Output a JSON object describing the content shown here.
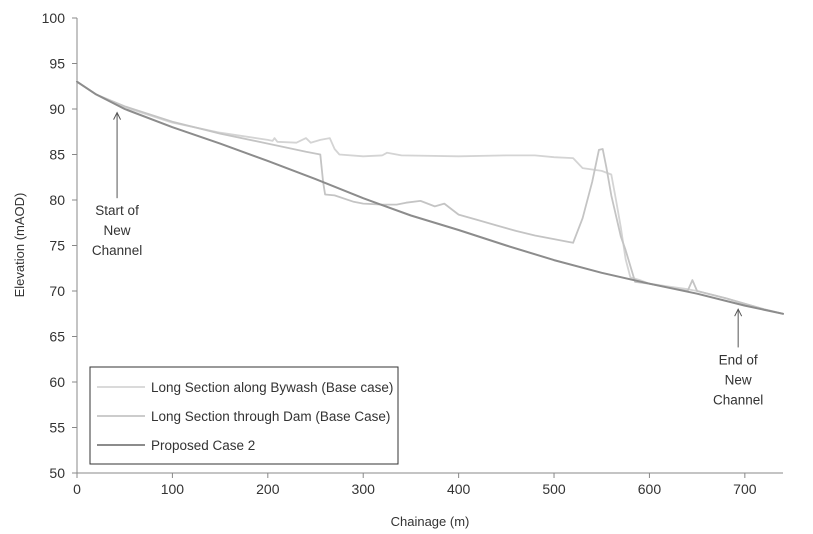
{
  "chart_data": {
    "type": "line",
    "title": "",
    "xlabel": "Chainage (m)",
    "ylabel": "Elevation (mAOD)",
    "xlim": [
      0,
      740
    ],
    "ylim": [
      50,
      100
    ],
    "xticks": [
      0,
      100,
      200,
      300,
      400,
      500,
      600,
      700
    ],
    "yticks": [
      50,
      55,
      60,
      65,
      70,
      75,
      80,
      85,
      90,
      95,
      100
    ],
    "grid": false,
    "legend_position": "bottom-left",
    "series": [
      {
        "name": "Long Section along Bywash (Base case)",
        "color": "#d4d4d4",
        "points": [
          [
            0,
            93
          ],
          [
            20,
            91.6
          ],
          [
            50,
            90.2
          ],
          [
            100,
            88.5
          ],
          [
            150,
            87.4
          ],
          [
            200,
            86.6
          ],
          [
            205,
            86.5
          ],
          [
            207,
            86.8
          ],
          [
            210,
            86.4
          ],
          [
            230,
            86.3
          ],
          [
            240,
            86.8
          ],
          [
            245,
            86.3
          ],
          [
            255,
            86.6
          ],
          [
            265,
            86.8
          ],
          [
            270,
            85.6
          ],
          [
            275,
            85.0
          ],
          [
            300,
            84.8
          ],
          [
            320,
            84.9
          ],
          [
            325,
            85.2
          ],
          [
            340,
            84.9
          ],
          [
            400,
            84.8
          ],
          [
            450,
            84.9
          ],
          [
            480,
            84.9
          ],
          [
            500,
            84.7
          ],
          [
            520,
            84.6
          ],
          [
            530,
            83.5
          ],
          [
            550,
            83.2
          ],
          [
            560,
            82.8
          ],
          [
            565,
            80.0
          ],
          [
            570,
            77.0
          ],
          [
            575,
            73.5
          ],
          [
            580,
            71.5
          ],
          [
            590,
            71.2
          ],
          [
            600,
            70.8
          ],
          [
            620,
            70.5
          ],
          [
            640,
            70.2
          ],
          [
            650,
            70.0
          ],
          [
            680,
            69.2
          ],
          [
            700,
            68.6
          ],
          [
            720,
            68.0
          ],
          [
            740,
            67.5
          ]
        ]
      },
      {
        "name": "Long Section through Dam (Base Case)",
        "color": "#c4c4c4",
        "points": [
          [
            0,
            93
          ],
          [
            20,
            91.6
          ],
          [
            50,
            90.3
          ],
          [
            100,
            88.6
          ],
          [
            150,
            87.3
          ],
          [
            200,
            86.2
          ],
          [
            240,
            85.3
          ],
          [
            255,
            85.0
          ],
          [
            258,
            82.0
          ],
          [
            260,
            80.6
          ],
          [
            270,
            80.5
          ],
          [
            290,
            79.8
          ],
          [
            300,
            79.6
          ],
          [
            320,
            79.5
          ],
          [
            335,
            79.5
          ],
          [
            345,
            79.7
          ],
          [
            360,
            79.9
          ],
          [
            375,
            79.3
          ],
          [
            385,
            79.6
          ],
          [
            400,
            78.4
          ],
          [
            420,
            77.8
          ],
          [
            440,
            77.2
          ],
          [
            460,
            76.6
          ],
          [
            480,
            76.1
          ],
          [
            500,
            75.7
          ],
          [
            515,
            75.4
          ],
          [
            520,
            75.3
          ],
          [
            530,
            78.0
          ],
          [
            540,
            82.0
          ],
          [
            547,
            85.5
          ],
          [
            551,
            85.6
          ],
          [
            555,
            83.5
          ],
          [
            560,
            80.5
          ],
          [
            570,
            76.0
          ],
          [
            575,
            74.5
          ],
          [
            585,
            71.0
          ],
          [
            600,
            70.8
          ],
          [
            620,
            70.4
          ],
          [
            640,
            70.0
          ],
          [
            645,
            71.2
          ],
          [
            650,
            70.0
          ],
          [
            680,
            69.2
          ],
          [
            700,
            68.6
          ],
          [
            720,
            68.0
          ],
          [
            740,
            67.5
          ]
        ]
      },
      {
        "name": "Proposed Case 2",
        "color": "#8c8c8c",
        "points": [
          [
            0,
            93
          ],
          [
            20,
            91.6
          ],
          [
            50,
            90.0
          ],
          [
            100,
            88.0
          ],
          [
            150,
            86.2
          ],
          [
            200,
            84.3
          ],
          [
            250,
            82.3
          ],
          [
            300,
            80.2
          ],
          [
            350,
            78.3
          ],
          [
            400,
            76.7
          ],
          [
            450,
            75.0
          ],
          [
            500,
            73.4
          ],
          [
            550,
            72.0
          ],
          [
            600,
            70.8
          ],
          [
            650,
            69.7
          ],
          [
            700,
            68.4
          ],
          [
            740,
            67.5
          ]
        ]
      }
    ],
    "annotations": [
      {
        "lines": [
          "Start of",
          "New",
          "Channel"
        ],
        "arrow_from": [
          42,
          80.2
        ],
        "arrow_to": [
          42,
          89.6
        ]
      },
      {
        "lines": [
          "End of",
          "New",
          "Channel"
        ],
        "arrow_from": [
          693,
          63.8
        ],
        "arrow_to": [
          693,
          68.0
        ]
      }
    ]
  }
}
